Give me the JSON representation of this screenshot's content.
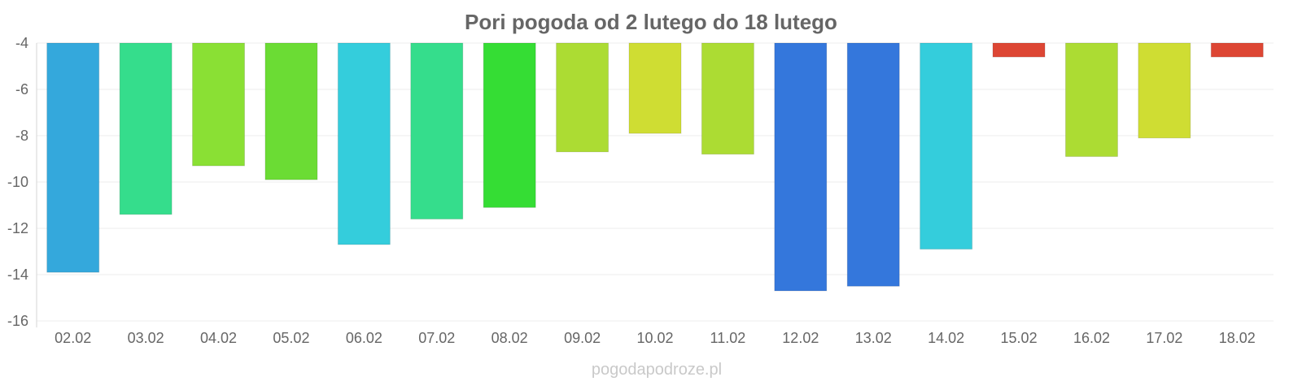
{
  "chart_data": {
    "type": "bar",
    "title": "Pori pogoda od 2 lutego do 18 lutego",
    "xlabel": "",
    "ylabel": "",
    "categories": [
      "02.02",
      "03.02",
      "04.02",
      "05.02",
      "06.02",
      "07.02",
      "08.02",
      "09.02",
      "10.02",
      "11.02",
      "12.02",
      "13.02",
      "14.02",
      "15.02",
      "16.02",
      "17.02",
      "18.02"
    ],
    "values": [
      -13.9,
      -11.4,
      -9.3,
      -9.9,
      -12.7,
      -11.6,
      -11.1,
      -8.7,
      -7.9,
      -8.8,
      -14.7,
      -14.5,
      -12.9,
      -4.6,
      -8.9,
      -8.1,
      -4.6
    ],
    "colors": [
      "#34a8dc",
      "#35dd8c",
      "#8ae034",
      "#6bdc34",
      "#34cddc",
      "#35dd8c",
      "#35dd34",
      "#acdc33",
      "#cfdd33",
      "#acdc33",
      "#3477dc",
      "#3477dc",
      "#34cddc",
      "#dd4634",
      "#acdc33",
      "#cfdd33",
      "#dd4634"
    ],
    "ylim": [
      -16,
      -4
    ],
    "yticks": [
      "-4",
      "-6",
      "-8",
      "-10",
      "-12",
      "-14",
      "-16"
    ],
    "grid": true,
    "legend": "none"
  },
  "watermark": "pogodapodroze.pl"
}
